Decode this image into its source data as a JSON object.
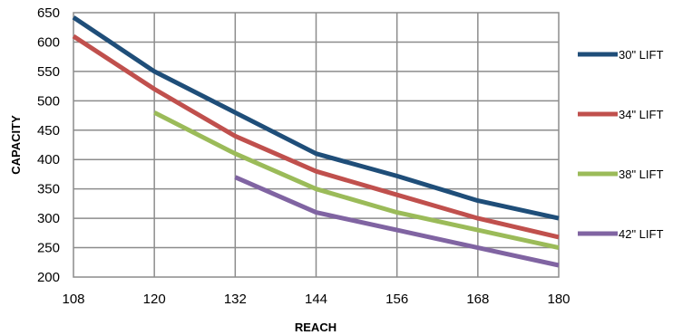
{
  "chart_data": {
    "type": "line",
    "xlabel": "REACH",
    "ylabel": "CAPACITY",
    "x": [
      108,
      120,
      132,
      144,
      156,
      168,
      180
    ],
    "xlim": [
      108,
      180
    ],
    "ylim": [
      200,
      650
    ],
    "y_ticks": [
      200,
      250,
      300,
      350,
      400,
      450,
      500,
      550,
      600,
      650
    ],
    "grid": true,
    "legend_position": "right",
    "series": [
      {
        "name": "30\" LIFT",
        "color": "#1f4e79",
        "points": [
          [
            108,
            642
          ],
          [
            120,
            550
          ],
          [
            132,
            480
          ],
          [
            144,
            410
          ],
          [
            156,
            372
          ],
          [
            168,
            330
          ],
          [
            180,
            300
          ]
        ]
      },
      {
        "name": "34\" LIFT",
        "color": "#c0504d",
        "points": [
          [
            108,
            610
          ],
          [
            120,
            520
          ],
          [
            132,
            440
          ],
          [
            144,
            380
          ],
          [
            156,
            340
          ],
          [
            168,
            300
          ],
          [
            180,
            268
          ]
        ]
      },
      {
        "name": "38\" LIFT",
        "color": "#9bbb59",
        "points": [
          [
            120,
            480
          ],
          [
            132,
            410
          ],
          [
            144,
            350
          ],
          [
            156,
            310
          ],
          [
            168,
            280
          ],
          [
            180,
            250
          ]
        ]
      },
      {
        "name": "42\" LIFT",
        "color": "#8064a2",
        "points": [
          [
            132,
            370
          ],
          [
            144,
            310
          ],
          [
            156,
            280
          ],
          [
            168,
            250
          ],
          [
            180,
            220
          ]
        ]
      }
    ]
  }
}
